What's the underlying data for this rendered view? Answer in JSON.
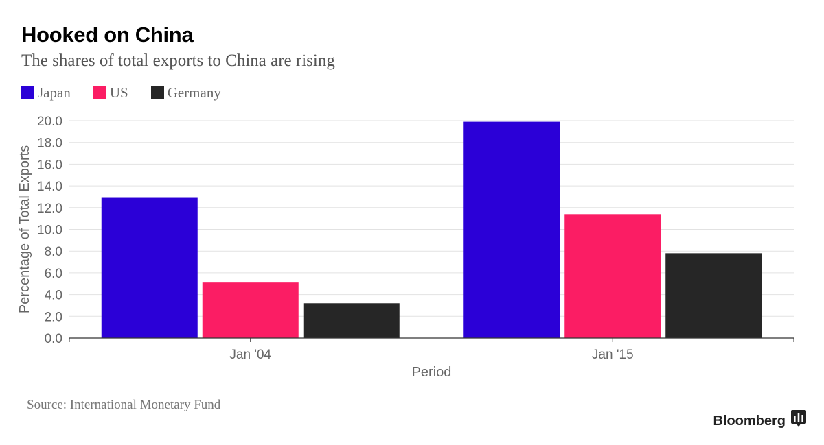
{
  "header": {
    "title": "Hooked on China",
    "subtitle": "The shares of total exports to China are rising"
  },
  "legend": [
    {
      "label": "Japan",
      "color": "#2b00d7"
    },
    {
      "label": "US",
      "color": "#fb1d64"
    },
    {
      "label": "Germany",
      "color": "#262626"
    }
  ],
  "chart_data": {
    "type": "bar",
    "title": "Hooked on China",
    "subtitle": "The shares of total exports to China are rising",
    "xlabel": "Period",
    "ylabel": "Percentage of Total Exports",
    "categories": [
      "Jan '04",
      "Jan '15"
    ],
    "series": [
      {
        "name": "Japan",
        "values": [
          12.9,
          19.9
        ],
        "color": "#2b00d7"
      },
      {
        "name": "US",
        "values": [
          5.1,
          11.4
        ],
        "color": "#fb1d64"
      },
      {
        "name": "Germany",
        "values": [
          3.2,
          7.8
        ],
        "color": "#262626"
      }
    ],
    "ylim": [
      0,
      20
    ],
    "yticks": [
      "0.0",
      "2.0",
      "4.0",
      "6.0",
      "8.0",
      "10.0",
      "12.0",
      "14.0",
      "16.0",
      "18.0",
      "20.0"
    ],
    "grid": true,
    "legend_position": "top-left"
  },
  "footer": {
    "source": "Source: International Monetary Fund",
    "brand": "Bloomberg",
    "brand_icon": "bloomberg-bars-icon"
  }
}
